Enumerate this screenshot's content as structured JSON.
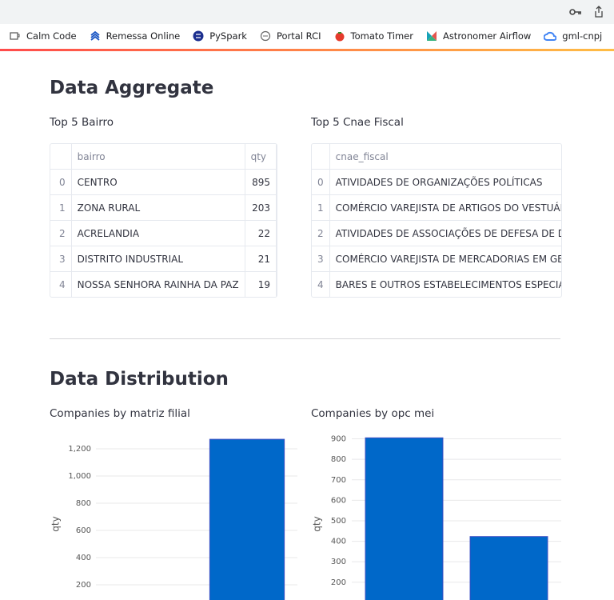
{
  "browser": {
    "bookmarks": [
      "Calm Code",
      "Remessa Online",
      "PySpark",
      "Portal RCI",
      "Tomato Timer",
      "Astronomer Airflow",
      "gml-cnpj"
    ]
  },
  "aggregate": {
    "title": "Data Aggregate",
    "tables": [
      {
        "title": "Top 5 Bairro",
        "columns": [
          "bairro",
          "qty"
        ],
        "rows": [
          [
            0,
            "CENTRO",
            895
          ],
          [
            1,
            "ZONA RURAL",
            203
          ],
          [
            2,
            "ACRELANDIA",
            22
          ],
          [
            3,
            "DISTRITO INDUSTRIAL",
            21
          ],
          [
            4,
            "NOSSA SENHORA RAINHA DA PAZ",
            19
          ]
        ]
      },
      {
        "title": "Top 5 Cnae Fiscal",
        "columns": [
          "cnae_fiscal"
        ],
        "rows": [
          [
            0,
            "ATIVIDADES DE ORGANIZAÇÕES POLÍTICAS"
          ],
          [
            1,
            "COMÉRCIO VAREJISTA DE ARTIGOS DO VESTUÁR"
          ],
          [
            2,
            "ATIVIDADES DE ASSOCIAÇÕES DE DEFESA DE DIR"
          ],
          [
            3,
            "COMÉRCIO VAREJISTA DE MERCADORIAS EM GER"
          ],
          [
            4,
            "BARES E OUTROS ESTABELECIMENTOS ESPECIA"
          ]
        ]
      }
    ]
  },
  "distribution": {
    "title": "Data Distribution"
  },
  "chart_data": [
    {
      "type": "bar",
      "title": "Companies by matriz filial",
      "y_label": "qty",
      "categories": [
        null,
        null
      ],
      "values": [
        null,
        1270
      ],
      "color": "#0068c9",
      "ylim": [
        0,
        1300
      ],
      "yticks": [
        200,
        400,
        600,
        800,
        {
          "value": 1000,
          "label": "1,000"
        },
        {
          "value": 1200,
          "label": "1,200"
        }
      ],
      "grid": true
    },
    {
      "type": "bar",
      "title": "Companies by opc mei",
      "y_label": "qty",
      "categories": [
        null,
        null
      ],
      "values": [
        905,
        423
      ],
      "color": "#0068c9",
      "ylim": [
        0,
        910
      ],
      "yticks": [
        200,
        300,
        400,
        500,
        600,
        700,
        800,
        900
      ],
      "grid": true
    }
  ]
}
